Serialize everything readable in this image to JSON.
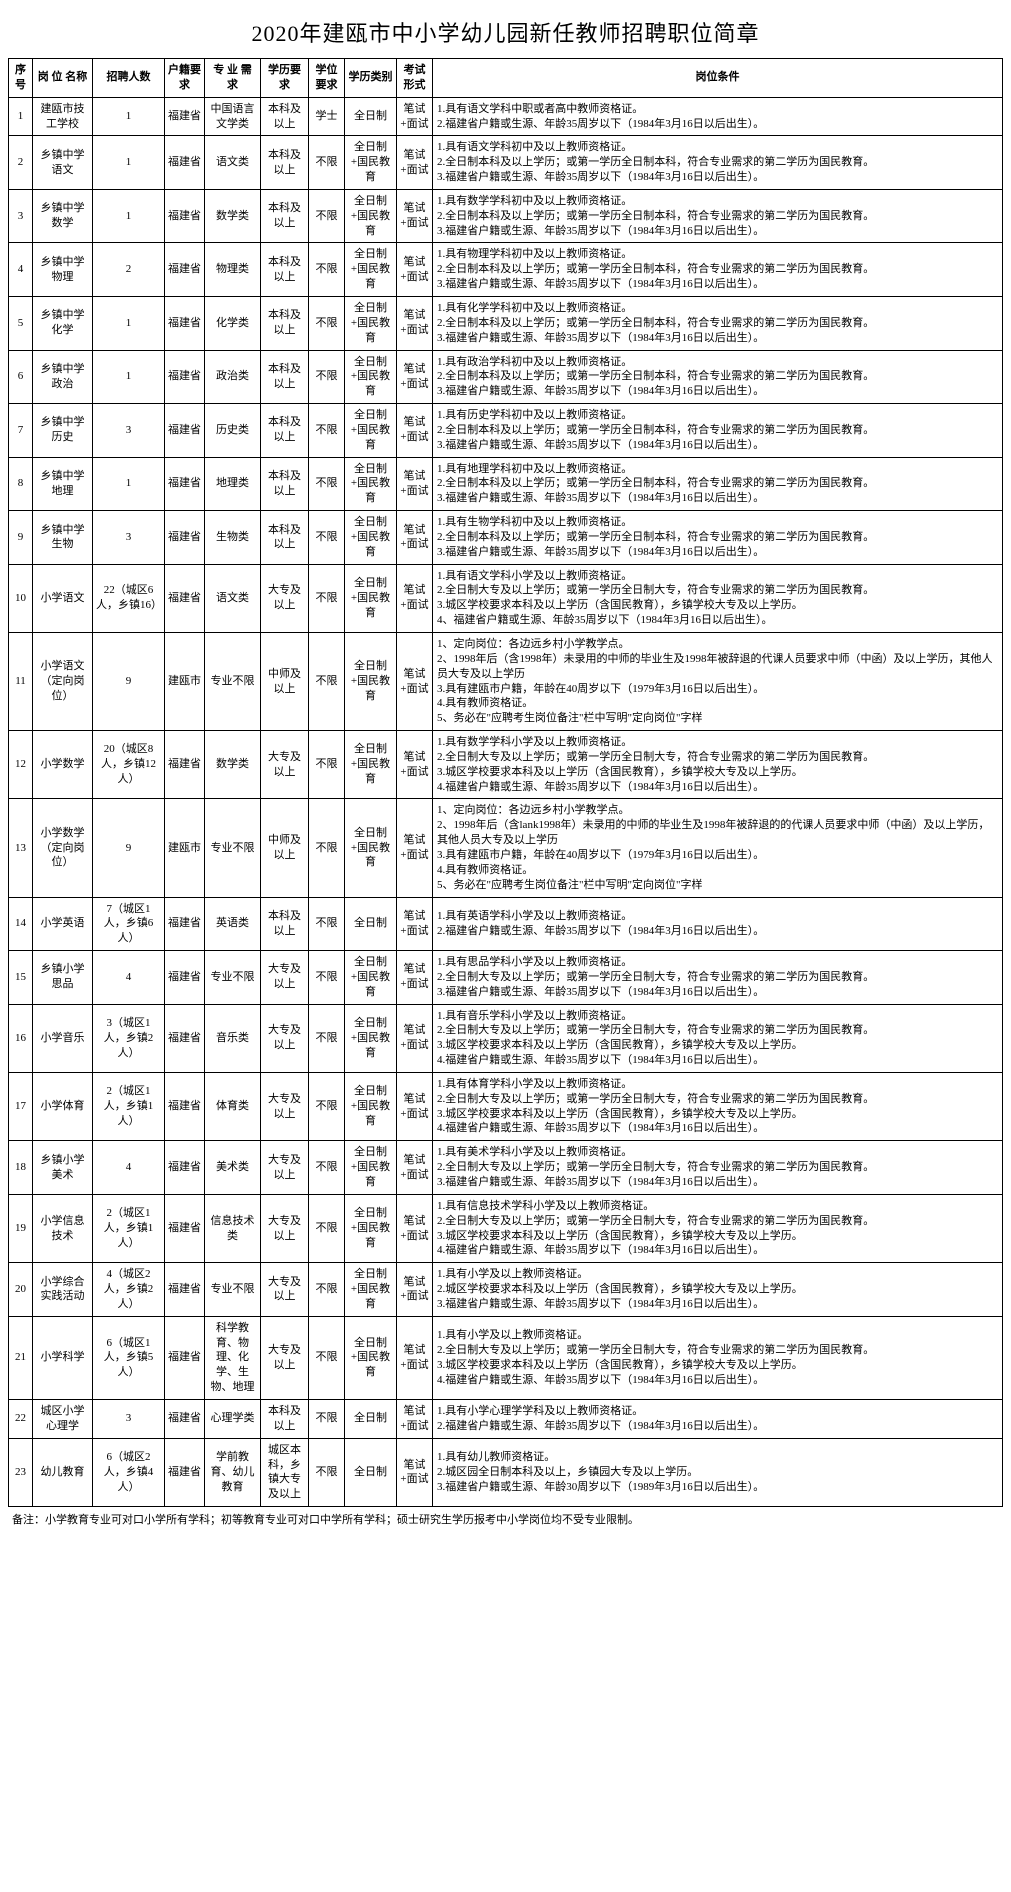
{
  "title": "2020年建瓯市中小学幼儿园新任教师招聘职位简章",
  "headers": [
    "序号",
    "岗 位  名称",
    "招聘人数",
    "户籍要求",
    "专 业  需求",
    "学历要求",
    "学位要求",
    "学历类别",
    "考试形式",
    "岗位条件"
  ],
  "footnote": "备注：小学教育专业可对口小学所有学科；初等教育专业可对口中学所有学科；硕士研究生学历报考中小学岗位均不受专业限制。",
  "rows": [
    {
      "idx": "1",
      "pos": "建瓯市技工学校",
      "cnt": "1",
      "huji": "福建省",
      "zhuan": "中国语言文学类",
      "xueli": "本科及以上",
      "xuewei": "学士",
      "edu": "全日制",
      "exam": "笔试+面试",
      "cond": "1.具有语文学科中职或者高中教师资格证。\n2.福建省户籍或生源、年龄35周岁以下（1984年3月16日以后出生）。"
    },
    {
      "idx": "2",
      "pos": "乡镇中学语文",
      "cnt": "1",
      "huji": "福建省",
      "zhuan": "语文类",
      "xueli": "本科及以上",
      "xuewei": "不限",
      "edu": "全日制+国民教育",
      "exam": "笔试+面试",
      "cond": "1.具有语文学科初中及以上教师资格证。\n2.全日制本科及以上学历；或第一学历全日制本科，符合专业需求的第二学历为国民教育。\n3.福建省户籍或生源、年龄35周岁以下（1984年3月16日以后出生）。"
    },
    {
      "idx": "3",
      "pos": "乡镇中学数学",
      "cnt": "1",
      "huji": "福建省",
      "zhuan": "数学类",
      "xueli": "本科及以上",
      "xuewei": "不限",
      "edu": "全日制+国民教育",
      "exam": "笔试+面试",
      "cond": "1.具有数学学科初中及以上教师资格证。\n2.全日制本科及以上学历；或第一学历全日制本科，符合专业需求的第二学历为国民教育。\n3.福建省户籍或生源、年龄35周岁以下（1984年3月16日以后出生）。"
    },
    {
      "idx": "4",
      "pos": "乡镇中学物理",
      "cnt": "2",
      "huji": "福建省",
      "zhuan": "物理类",
      "xueli": "本科及以上",
      "xuewei": "不限",
      "edu": "全日制+国民教育",
      "exam": "笔试+面试",
      "cond": "1.具有物理学科初中及以上教师资格证。\n2.全日制本科及以上学历；或第一学历全日制本科，符合专业需求的第二学历为国民教育。\n3.福建省户籍或生源、年龄35周岁以下（1984年3月16日以后出生）。"
    },
    {
      "idx": "5",
      "pos": "乡镇中学化学",
      "cnt": "1",
      "huji": "福建省",
      "zhuan": "化学类",
      "xueli": "本科及以上",
      "xuewei": "不限",
      "edu": "全日制+国民教育",
      "exam": "笔试+面试",
      "cond": "1.具有化学学科初中及以上教师资格证。\n2.全日制本科及以上学历；或第一学历全日制本科，符合专业需求的第二学历为国民教育。\n3.福建省户籍或生源、年龄35周岁以下（1984年3月16日以后出生）。"
    },
    {
      "idx": "6",
      "pos": "乡镇中学政治",
      "cnt": "1",
      "huji": "福建省",
      "zhuan": "政治类",
      "xueli": "本科及以上",
      "xuewei": "不限",
      "edu": "全日制+国民教育",
      "exam": "笔试+面试",
      "cond": "1.具有政治学科初中及以上教师资格证。\n2.全日制本科及以上学历；或第一学历全日制本科，符合专业需求的第二学历为国民教育。\n3.福建省户籍或生源、年龄35周岁以下（1984年3月16日以后出生）。"
    },
    {
      "idx": "7",
      "pos": "乡镇中学历史",
      "cnt": "3",
      "huji": "福建省",
      "zhuan": "历史类",
      "xueli": "本科及以上",
      "xuewei": "不限",
      "edu": "全日制+国民教育",
      "exam": "笔试+面试",
      "cond": "1.具有历史学科初中及以上教师资格证。\n2.全日制本科及以上学历；或第一学历全日制本科，符合专业需求的第二学历为国民教育。\n3.福建省户籍或生源、年龄35周岁以下（1984年3月16日以后出生）。"
    },
    {
      "idx": "8",
      "pos": "乡镇中学地理",
      "cnt": "1",
      "huji": "福建省",
      "zhuan": "地理类",
      "xueli": "本科及以上",
      "xuewei": "不限",
      "edu": "全日制+国民教育",
      "exam": "笔试+面试",
      "cond": "1.具有地理学科初中及以上教师资格证。\n2.全日制本科及以上学历；或第一学历全日制本科，符合专业需求的第二学历为国民教育。\n3.福建省户籍或生源、年龄35周岁以下（1984年3月16日以后出生）。"
    },
    {
      "idx": "9",
      "pos": "乡镇中学生物",
      "cnt": "3",
      "huji": "福建省",
      "zhuan": "生物类",
      "xueli": "本科及以上",
      "xuewei": "不限",
      "edu": "全日制+国民教育",
      "exam": "笔试+面试",
      "cond": "1.具有生物学科初中及以上教师资格证。\n2.全日制本科及以上学历；或第一学历全日制本科，符合专业需求的第二学历为国民教育。\n3.福建省户籍或生源、年龄35周岁以下（1984年3月16日以后出生）。"
    },
    {
      "idx": "10",
      "pos": "小学语文",
      "cnt": "22（城区6人，乡镇16）",
      "huji": "福建省",
      "zhuan": "语文类",
      "xueli": "大专及以上",
      "xuewei": "不限",
      "edu": "全日制+国民教育",
      "exam": "笔试+面试",
      "cond": "1.具有语文学科小学及以上教师资格证。\n2.全日制大专及以上学历；或第一学历全日制大专，符合专业需求的第二学历为国民教育。\n3.城区学校要求本科及以上学历（含国民教育），乡镇学校大专及以上学历。\n4、福建省户籍或生源、年龄35周岁以下（1984年3月16日以后出生）。"
    },
    {
      "idx": "11",
      "pos": "小学语文（定向岗位）",
      "cnt": "9",
      "huji": "建瓯市",
      "zhuan": "专业不限",
      "xueli": "中师及以上",
      "xuewei": "不限",
      "edu": "全日制+国民教育",
      "exam": "笔试+面试",
      "cond": "1、定向岗位：各边远乡村小学教学点。\n2、1998年后（含1998年）未录用的中师的毕业生及1998年被辞退的代课人员要求中师（中函）及以上学历，其他人员大专及以上学历\n3.具有建瓯市户籍，年龄在40周岁以下（1979年3月16日以后出生）。\n4.具有教师资格证。\n5、务必在\"应聘考生岗位备注\"栏中写明\"定向岗位\"字样"
    },
    {
      "idx": "12",
      "pos": "小学数学",
      "cnt": "20（城区8人，乡镇12人）",
      "huji": "福建省",
      "zhuan": "数学类",
      "xueli": "大专及以上",
      "xuewei": "不限",
      "edu": "全日制+国民教育",
      "exam": "笔试+面试",
      "cond": "1.具有数学学科小学及以上教师资格证。\n2.全日制大专及以上学历；或第一学历全日制大专，符合专业需求的第二学历为国民教育。\n3.城区学校要求本科及以上学历（含国民教育），乡镇学校大专及以上学历。\n4.福建省户籍或生源、年龄35周岁以下（1984年3月16日以后出生）。"
    },
    {
      "idx": "13",
      "pos": "小学数学（定向岗位）",
      "cnt": "9",
      "huji": "建瓯市",
      "zhuan": "专业不限",
      "xueli": "中师及以上",
      "xuewei": "不限",
      "edu": "全日制+国民教育",
      "exam": "笔试+面试",
      "cond": "1、定向岗位：各边远乡村小学教学点。\n2、1998年后（含lank1998年）未录用的中师的毕业生及1998年被辞退的的代课人员要求中师（中函）及以上学历，其他人员大专及以上学历\n3.具有建瓯市户籍，年龄在40周岁以下（1979年3月16日以后出生）。\n4.具有教师资格证。\n5、务必在\"应聘考生岗位备注\"栏中写明\"定向岗位\"字样"
    },
    {
      "idx": "14",
      "pos": "小学英语",
      "cnt": "7（城区1人，乡镇6人）",
      "huji": "福建省",
      "zhuan": "英语类",
      "xueli": "本科及以上",
      "xuewei": "不限",
      "edu": "全日制",
      "exam": "笔试+面试",
      "cond": "1.具有英语学科小学及以上教师资格证。\n2.福建省户籍或生源、年龄35周岁以下（1984年3月16日以后出生）。"
    },
    {
      "idx": "15",
      "pos": "乡镇小学思品",
      "cnt": "4",
      "huji": "福建省",
      "zhuan": "专业不限",
      "xueli": "大专及以上",
      "xuewei": "不限",
      "edu": "全日制+国民教育",
      "exam": "笔试+面试",
      "cond": "1.具有思品学科小学及以上教师资格证。\n2.全日制大专及以上学历；或第一学历全日制大专，符合专业需求的第二学历为国民教育。\n3.福建省户籍或生源、年龄35周岁以下（1984年3月16日以后出生）。"
    },
    {
      "idx": "16",
      "pos": "小学音乐",
      "cnt": "3（城区1人，乡镇2人）",
      "huji": "福建省",
      "zhuan": "音乐类",
      "xueli": "大专及以上",
      "xuewei": "不限",
      "edu": "全日制+国民教育",
      "exam": "笔试+面试",
      "cond": "1.具有音乐学科小学及以上教师资格证。\n2.全日制大专及以上学历；或第一学历全日制大专，符合专业需求的第二学历为国民教育。\n3.城区学校要求本科及以上学历（含国民教育），乡镇学校大专及以上学历。\n4.福建省户籍或生源、年龄35周岁以下（1984年3月16日以后出生）。"
    },
    {
      "idx": "17",
      "pos": "小学体育",
      "cnt": "2（城区1人，乡镇1人）",
      "huji": "福建省",
      "zhuan": "体育类",
      "xueli": "大专及以上",
      "xuewei": "不限",
      "edu": "全日制+国民教育",
      "exam": "笔试+面试",
      "cond": "1.具有体育学科小学及以上教师资格证。\n2.全日制大专及以上学历；或第一学历全日制大专，符合专业需求的第二学历为国民教育。\n3.城区学校要求本科及以上学历（含国民教育），乡镇学校大专及以上学历。\n4.福建省户籍或生源、年龄35周岁以下（1984年3月16日以后出生）。"
    },
    {
      "idx": "18",
      "pos": "乡镇小学美术",
      "cnt": "4",
      "huji": "福建省",
      "zhuan": "美术类",
      "xueli": "大专及以上",
      "xuewei": "不限",
      "edu": "全日制+国民教育",
      "exam": "笔试+面试",
      "cond": "1.具有美术学科小学及以上教师资格证。\n2.全日制大专及以上学历；或第一学历全日制大专，符合专业需求的第二学历为国民教育。\n3.福建省户籍或生源、年龄35周岁以下（1984年3月16日以后出生）。"
    },
    {
      "idx": "19",
      "pos": "小学信息技术",
      "cnt": "2（城区1人，乡镇1人）",
      "huji": "福建省",
      "zhuan": "信息技术类",
      "xueli": "大专及以上",
      "xuewei": "不限",
      "edu": "全日制+国民教育",
      "exam": "笔试+面试",
      "cond": "1.具有信息技术学科小学及以上教师资格证。\n2.全日制大专及以上学历；或第一学历全日制大专，符合专业需求的第二学历为国民教育。\n3.城区学校要求本科及以上学历（含国民教育），乡镇学校大专及以上学历。\n4.福建省户籍或生源、年龄35周岁以下（1984年3月16日以后出生）。"
    },
    {
      "idx": "20",
      "pos": "小学综合实践活动",
      "cnt": "4（城区2人，乡镇2人）",
      "huji": "福建省",
      "zhuan": "专业不限",
      "xueli": "大专及以上",
      "xuewei": "不限",
      "edu": "全日制+国民教育",
      "exam": "笔试+面试",
      "cond": "1.具有小学及以上教师资格证。\n2.城区学校要求本科及以上学历（含国民教育），乡镇学校大专及以上学历。\n3.福建省户籍或生源、年龄35周岁以下（1984年3月16日以后出生）。"
    },
    {
      "idx": "21",
      "pos": "小学科学",
      "cnt": "6（城区1人，乡镇5人）",
      "huji": "福建省",
      "zhuan": "科学教育、物理、化学、生物、地理",
      "xueli": "大专及以上",
      "xuewei": "不限",
      "edu": "全日制+国民教育",
      "exam": "笔试+面试",
      "cond": "1.具有小学及以上教师资格证。\n2.全日制大专及以上学历；或第一学历全日制大专，符合专业需求的第二学历为国民教育。\n3.城区学校要求本科及以上学历（含国民教育），乡镇学校大专及以上学历。\n4.福建省户籍或生源、年龄35周岁以下（1984年3月16日以后出生）。"
    },
    {
      "idx": "22",
      "pos": "城区小学心理学",
      "cnt": "3",
      "huji": "福建省",
      "zhuan": "心理学类",
      "xueli": "本科及以上",
      "xuewei": "不限",
      "edu": "全日制",
      "exam": "笔试+面试",
      "cond": "1.具有小学心理学学科及以上教师资格证。\n2.福建省户籍或生源、年龄35周岁以下（1984年3月16日以后出生）。"
    },
    {
      "idx": "23",
      "pos": "幼儿教育",
      "cnt": "6（城区2人，乡镇4人）",
      "huji": "福建省",
      "zhuan": "学前教育、幼儿教育",
      "xueli": "城区本科，乡镇大专及以上",
      "xuewei": "不限",
      "edu": "全日制",
      "exam": "笔试+面试",
      "cond": "1.具有幼儿教师资格证。\n2.城区园全日制本科及以上，乡镇园大专及以上学历。\n3.福建省户籍或生源、年龄30周岁以下（1989年3月16日以后出生）。"
    }
  ]
}
